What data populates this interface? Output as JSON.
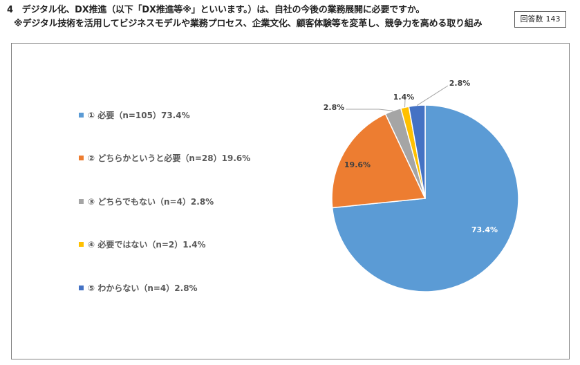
{
  "header": {
    "question": "4　デジタル化、DX推進（以下「DX推進等※」といいます。）は、自社の今後の業務展開に必要ですか。",
    "note": "※デジタル技術を活用してビジネスモデルや業務プロセス、企業文化、顧客体験等を変革し、競争力を高める取り組み",
    "respondents_label": "回答数",
    "respondents_count": "143"
  },
  "chart_data": {
    "type": "pie",
    "total": 143,
    "slices": [
      {
        "label": "① 必要（n=105）73.4%",
        "value": 73.4,
        "n": 105,
        "data_label": "73.4%",
        "color": "#5b9bd5"
      },
      {
        "label": "② どちらかというと必要（n=28）19.6%",
        "value": 19.6,
        "n": 28,
        "data_label": "19.6%",
        "color": "#ed7d31"
      },
      {
        "label": "③ どちらでもない（n=4）2.8%",
        "value": 2.8,
        "n": 4,
        "data_label": "2.8%",
        "color": "#a5a5a5"
      },
      {
        "label": "④ 必要ではない（n=2）1.4%",
        "value": 1.4,
        "n": 2,
        "data_label": "1.4%",
        "color": "#ffc000"
      },
      {
        "label": "⑤ わからない（n=4）2.8%",
        "value": 2.8,
        "n": 4,
        "data_label": "2.8%",
        "color": "#4472c4"
      }
    ],
    "start_angle": "top",
    "direction": "clockwise",
    "legend_position": "left"
  }
}
